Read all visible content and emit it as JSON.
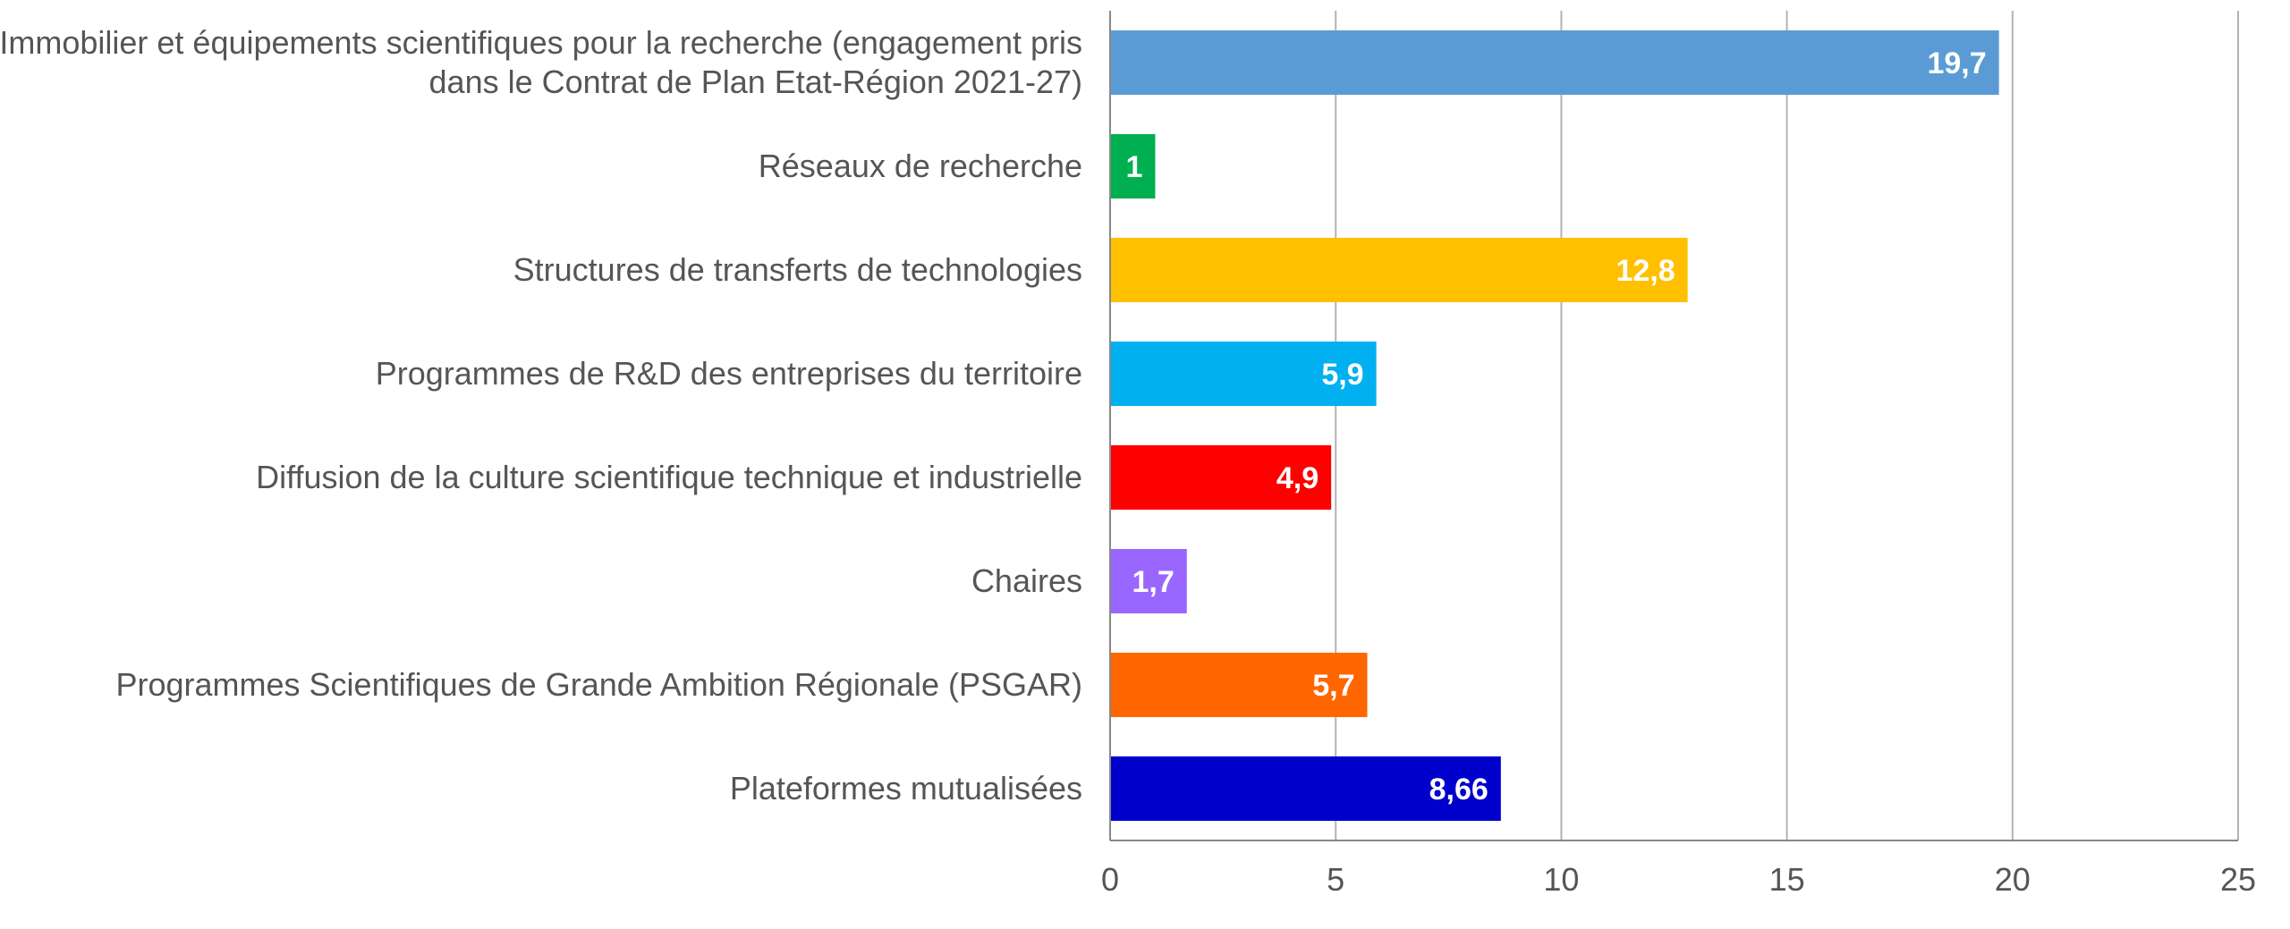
{
  "chart_data": {
    "type": "bar",
    "orientation": "horizontal",
    "categories": [
      "Immobilier et équipements scientifiques pour la recherche (engagement pris dans le Contrat de Plan Etat-Région 2021-27)",
      "Réseaux de recherche",
      "Structures de transferts de technologies",
      "Programmes de R&D des entreprises du territoire",
      "Diffusion de la culture scientifique technique et industrielle",
      "Chaires",
      "Programmes Scientifiques de Grande Ambition Régionale (PSGAR)",
      "Plateformes mutualisées"
    ],
    "values": [
      19.7,
      1,
      12.8,
      5.9,
      4.9,
      1.7,
      5.7,
      8.66
    ],
    "data_labels": [
      "19,7",
      "1",
      "12,8",
      "5,9",
      "4,9",
      "1,7",
      "5,7",
      "8,66"
    ],
    "colors": [
      "#5B9BD5",
      "#00B050",
      "#FFC000",
      "#00B0F0",
      "#FF0000",
      "#9966FF",
      "#FF6600",
      "#0000CC"
    ],
    "xlim": [
      0,
      25
    ],
    "xticks": [
      0,
      5,
      10,
      15,
      20,
      25
    ],
    "xtick_labels": [
      "0",
      "5",
      "10",
      "15",
      "20",
      "25"
    ],
    "grid": true,
    "title": "",
    "xlabel": "",
    "ylabel": "",
    "grid_color": "#B3B3B3",
    "axis_color": "#888888"
  }
}
